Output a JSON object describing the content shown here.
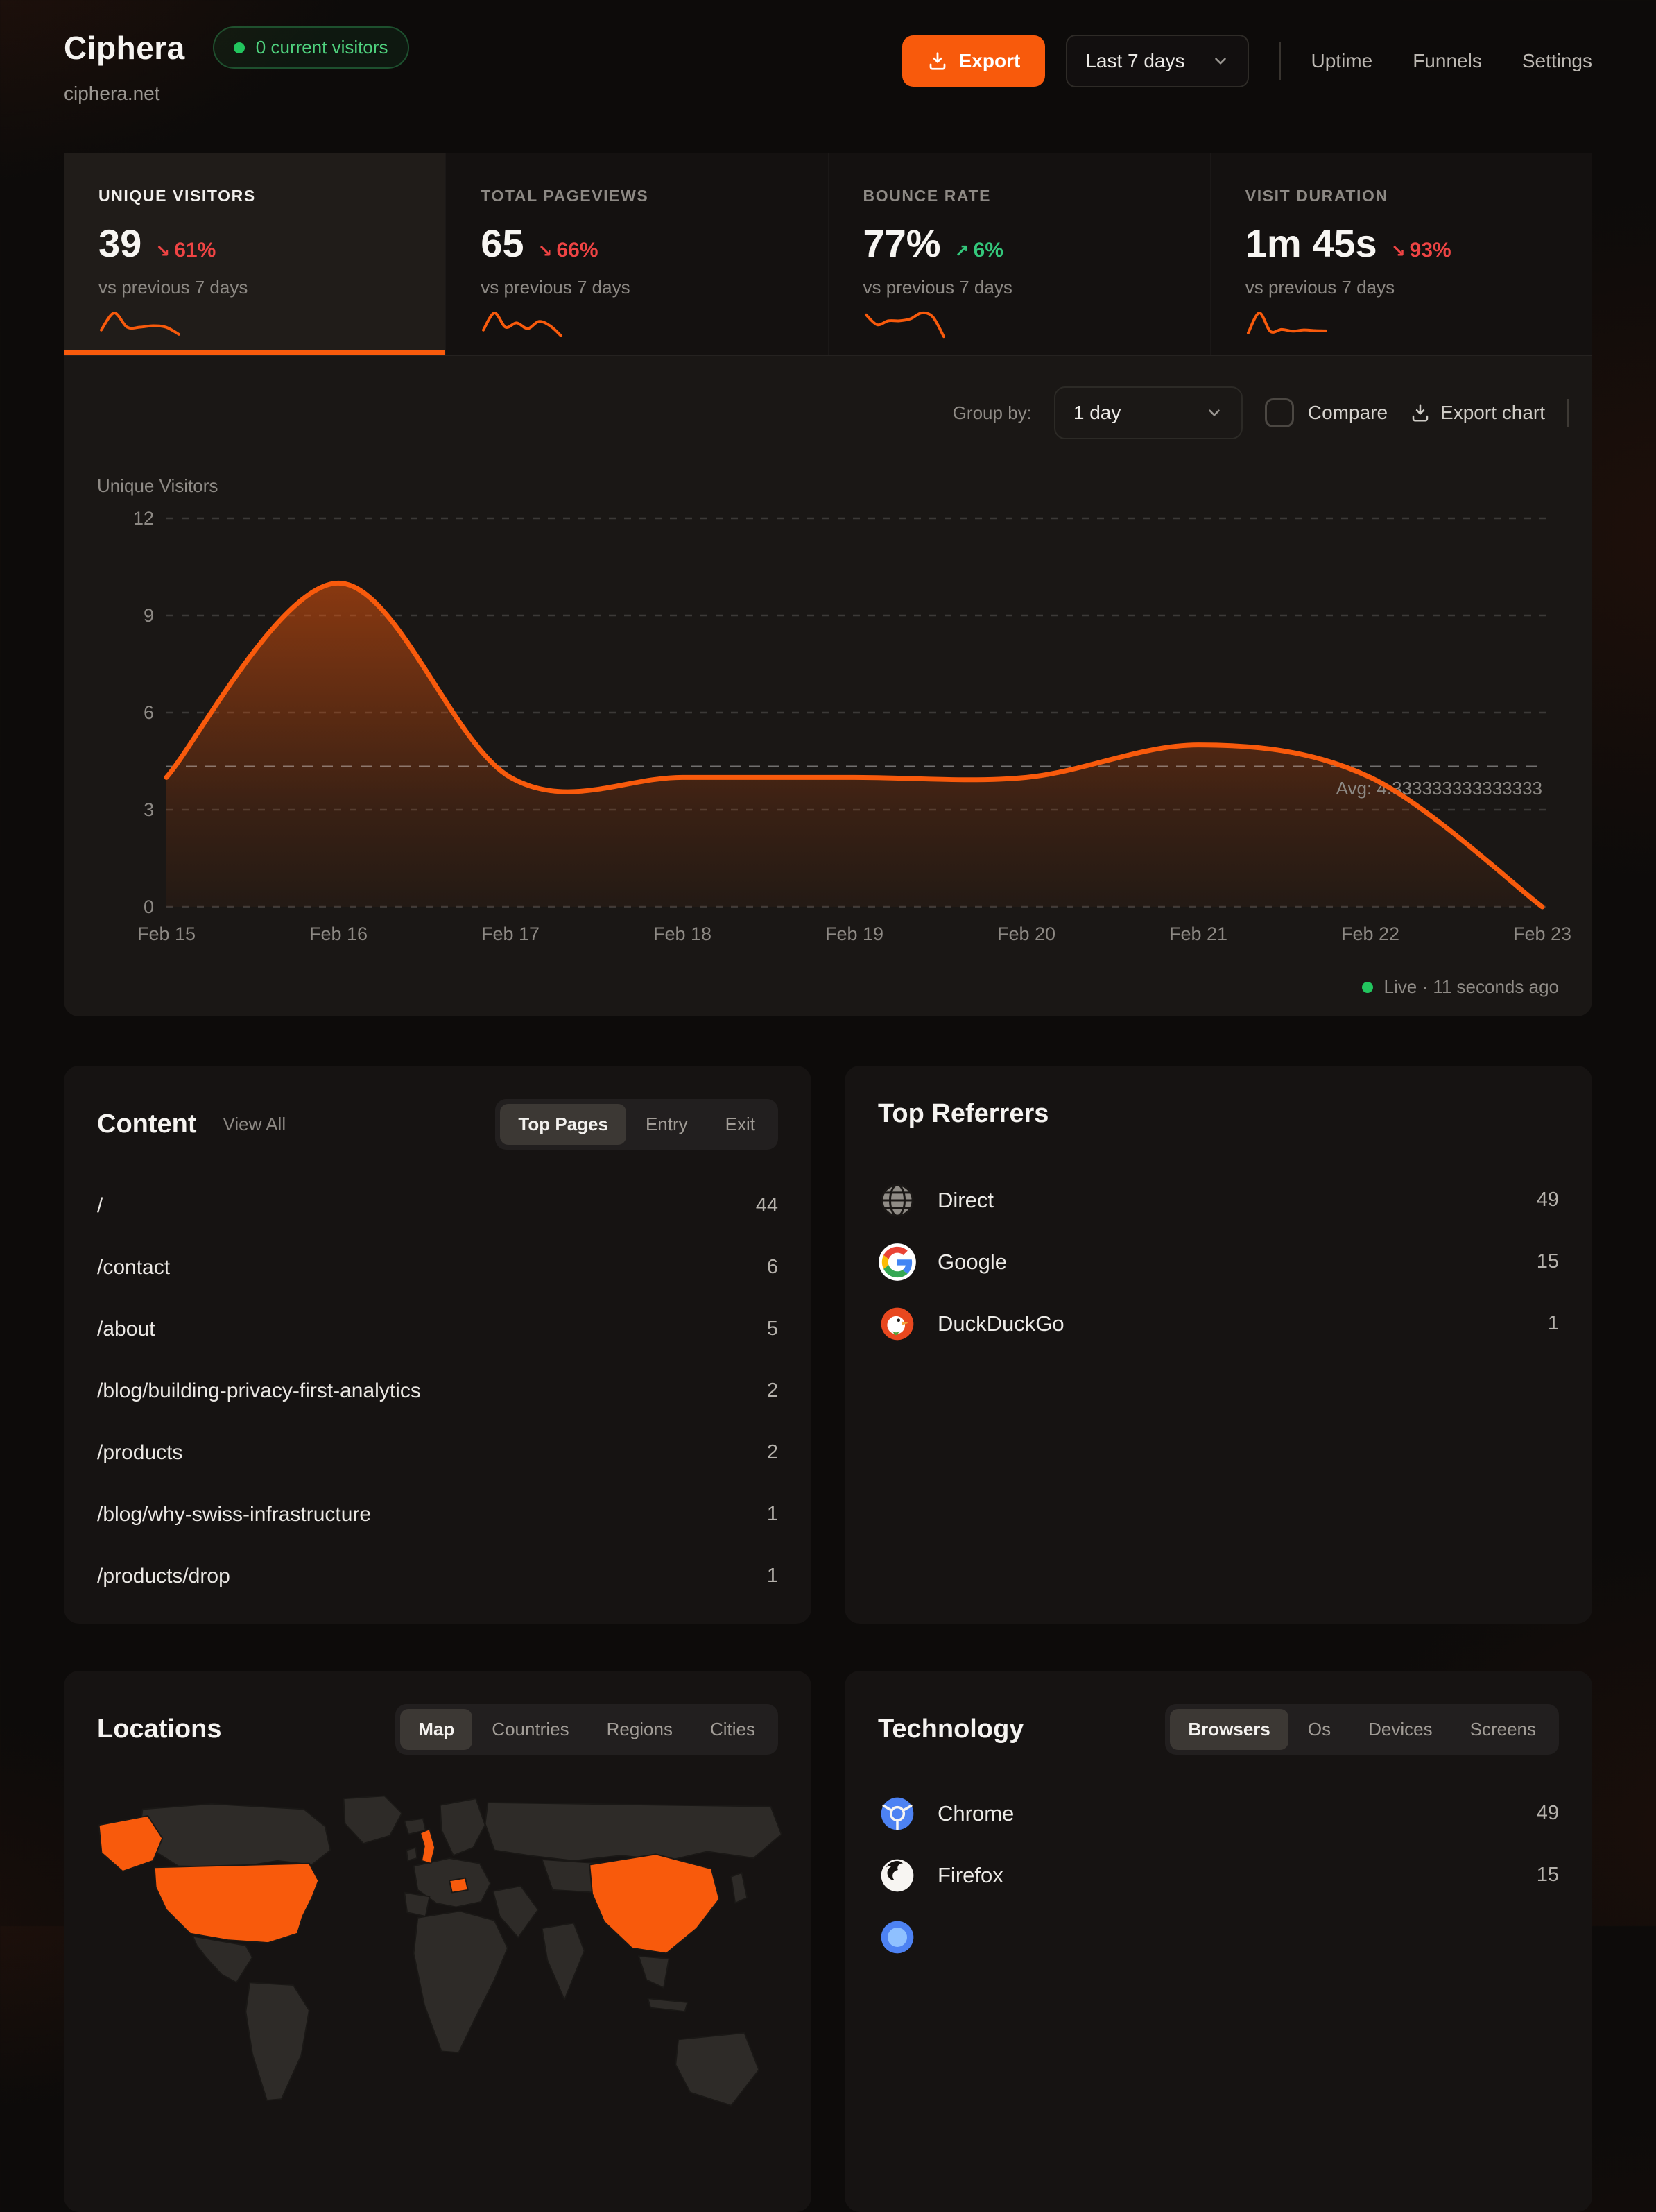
{
  "colors": {
    "accent": "#f85a0c",
    "positive": "#34c77b",
    "negative": "#ef4444",
    "live_green": "#22c55e"
  },
  "header": {
    "brand": "Ciphera",
    "domain": "ciphera.net",
    "current_visitors_badge": "0 current visitors",
    "export_button": "Export",
    "date_range": "Last 7 days",
    "nav": [
      {
        "label": "Uptime"
      },
      {
        "label": "Funnels"
      },
      {
        "label": "Settings"
      }
    ]
  },
  "stats": [
    {
      "label": "UNIQUE VISITORS",
      "value": "39",
      "delta": "61%",
      "direction": "down",
      "compare_label": "vs previous 7 days",
      "active": true,
      "spark": [
        3,
        9,
        4,
        4,
        4.5,
        4,
        1.5
      ]
    },
    {
      "label": "TOTAL PAGEVIEWS",
      "value": "65",
      "delta": "66%",
      "direction": "down",
      "compare_label": "vs previous 7 days",
      "active": false,
      "spark": [
        3,
        9,
        4,
        5.5,
        3.5,
        6,
        4.5,
        1
      ]
    },
    {
      "label": "BOUNCE RATE",
      "value": "77%",
      "delta": "6%",
      "direction": "up",
      "compare_label": "vs previous 7 days",
      "active": false,
      "spark": [
        6,
        3.5,
        4.5,
        4.5,
        5,
        6.5,
        5.5,
        0.5
      ]
    },
    {
      "label": "VISIT DURATION",
      "value": "1m 45s",
      "delta": "93%",
      "direction": "down",
      "compare_label": "vs previous 7 days",
      "active": false,
      "spark": [
        2,
        9,
        2.5,
        3.2,
        2.6,
        3,
        2.8,
        2.7
      ]
    }
  ],
  "chart_controls": {
    "group_by_label": "Group by:",
    "group_by_value": "1 day",
    "compare_label": "Compare",
    "export_chart_label": "Export chart"
  },
  "chart_data": {
    "type": "area",
    "title": "Unique Visitors",
    "x": [
      "Feb 15",
      "Feb 16",
      "Feb 17",
      "Feb 18",
      "Feb 19",
      "Feb 20",
      "Feb 21",
      "Feb 22",
      "Feb 23"
    ],
    "values": [
      4,
      10,
      4,
      4,
      4,
      4,
      5,
      4,
      0
    ],
    "avg": 4.333333333333333,
    "avg_label": "Avg: 4.333333333333333",
    "ylim": [
      0,
      12
    ],
    "yticks": [
      0,
      3,
      6,
      9,
      12
    ],
    "grid": "horizontal-dashed",
    "legend": "none",
    "line_color": "#f85a0c"
  },
  "live_status": "Live · 11 seconds ago",
  "content_panel": {
    "title": "Content",
    "view_all": "View All",
    "tabs": [
      {
        "label": "Top Pages",
        "active": true
      },
      {
        "label": "Entry",
        "active": false
      },
      {
        "label": "Exit",
        "active": false
      }
    ],
    "rows": [
      {
        "path": "/",
        "value": "44"
      },
      {
        "path": "/contact",
        "value": "6"
      },
      {
        "path": "/about",
        "value": "5"
      },
      {
        "path": "/blog/building-privacy-first-analytics",
        "value": "2"
      },
      {
        "path": "/products",
        "value": "2"
      },
      {
        "path": "/blog/why-swiss-infrastructure",
        "value": "1"
      },
      {
        "path": "/products/drop",
        "value": "1"
      }
    ]
  },
  "referrers_panel": {
    "title": "Top Referrers",
    "rows": [
      {
        "name": "Direct",
        "value": "49",
        "icon": "globe-icon"
      },
      {
        "name": "Google",
        "value": "15",
        "icon": "google-icon"
      },
      {
        "name": "DuckDuckGo",
        "value": "1",
        "icon": "duckduckgo-icon"
      }
    ]
  },
  "locations_panel": {
    "title": "Locations",
    "tabs": [
      {
        "label": "Map",
        "active": true
      },
      {
        "label": "Countries",
        "active": false
      },
      {
        "label": "Regions",
        "active": false
      },
      {
        "label": "Cities",
        "active": false
      }
    ],
    "map_highlights": [
      "United States",
      "United Kingdom",
      "Switzerland",
      "China"
    ]
  },
  "technology_panel": {
    "title": "Technology",
    "tabs": [
      {
        "label": "Browsers",
        "active": true
      },
      {
        "label": "Os",
        "active": false
      },
      {
        "label": "Devices",
        "active": false
      },
      {
        "label": "Screens",
        "active": false
      }
    ],
    "rows": [
      {
        "name": "Chrome",
        "value": "49",
        "icon": "chrome-icon"
      },
      {
        "name": "Firefox",
        "value": "15",
        "icon": "firefox-icon"
      }
    ]
  }
}
